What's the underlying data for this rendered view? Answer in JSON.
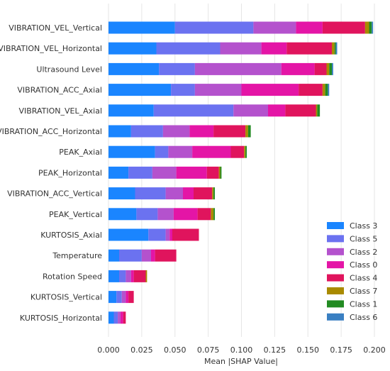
{
  "chart_data": {
    "type": "bar",
    "orientation": "horizontal",
    "stacked": true,
    "xlabel": "Mean |SHAP Value|",
    "ylabel": "",
    "xlim": [
      0,
      0.2
    ],
    "xticks": [
      "0.000",
      "0.025",
      "0.050",
      "0.075",
      "0.100",
      "0.125",
      "0.150",
      "0.175",
      "0.200"
    ],
    "grid": "vertical",
    "legend_position": "bottom-right",
    "categories": [
      "VIBRATION_VEL_Vertical",
      "VIBRATION_VEL_Horizontal",
      "Ultrasound Level",
      "VIBRATION_ACC_Axial",
      "VIBRATION_VEL_Axial",
      "VIBRATION_ACC_Horizontal",
      "PEAK_Axial",
      "PEAK_Horizontal",
      "VIBRATION_ACC_Vertical",
      "PEAK_Vertical",
      "KURTOSIS_Axial",
      "Temperature",
      "Rotation Speed",
      "KURTOSIS_Vertical",
      "KURTOSIS_Horizontal"
    ],
    "series": [
      {
        "name": "Class 3",
        "color": "#1a85ff",
        "values": [
          0.05,
          0.036,
          0.038,
          0.047,
          0.034,
          0.017,
          0.035,
          0.015,
          0.02,
          0.021,
          0.03,
          0.008,
          0.008,
          0.006,
          0.004
        ]
      },
      {
        "name": "Class 5",
        "color": "#6b72f0",
        "values": [
          0.059,
          0.048,
          0.027,
          0.018,
          0.06,
          0.024,
          0.01,
          0.018,
          0.023,
          0.016,
          0.013,
          0.017,
          0.005,
          0.004,
          0.003
        ]
      },
      {
        "name": "Class 2",
        "color": "#b452cd",
        "values": [
          0.032,
          0.031,
          0.065,
          0.035,
          0.026,
          0.02,
          0.018,
          0.018,
          0.013,
          0.012,
          0.003,
          0.007,
          0.004,
          0.003,
          0.002
        ]
      },
      {
        "name": "Class 0",
        "color": "#e415a6",
        "values": [
          0.02,
          0.019,
          0.025,
          0.043,
          0.013,
          0.018,
          0.029,
          0.023,
          0.008,
          0.018,
          0.002,
          0.003,
          0.002,
          0.002,
          0.002
        ]
      },
      {
        "name": "Class 4",
        "color": "#e0145d",
        "values": [
          0.032,
          0.034,
          0.009,
          0.018,
          0.023,
          0.024,
          0.01,
          0.009,
          0.014,
          0.01,
          0.02,
          0.016,
          0.009,
          0.004,
          0.002
        ]
      },
      {
        "name": "Class 7",
        "color": "#a98a00",
        "values": [
          0.003,
          0.002,
          0.002,
          0.002,
          0.001,
          0.002,
          0.001,
          0.001,
          0.001,
          0.002,
          0.0,
          0.0,
          0.001,
          0.0,
          0.0
        ]
      },
      {
        "name": "Class 1",
        "color": "#228b22",
        "values": [
          0.002,
          0.001,
          0.002,
          0.002,
          0.002,
          0.002,
          0.001,
          0.001,
          0.001,
          0.001,
          0.0,
          0.0,
          0.0,
          0.0,
          0.0
        ]
      },
      {
        "name": "Class 6",
        "color": "#3a7fc2",
        "values": [
          0.001,
          0.001,
          0.001,
          0.001,
          0.0,
          0.0,
          0.0,
          0.0,
          0.0,
          0.0,
          0.0,
          0.0,
          0.0,
          0.0,
          0.0
        ]
      }
    ]
  }
}
